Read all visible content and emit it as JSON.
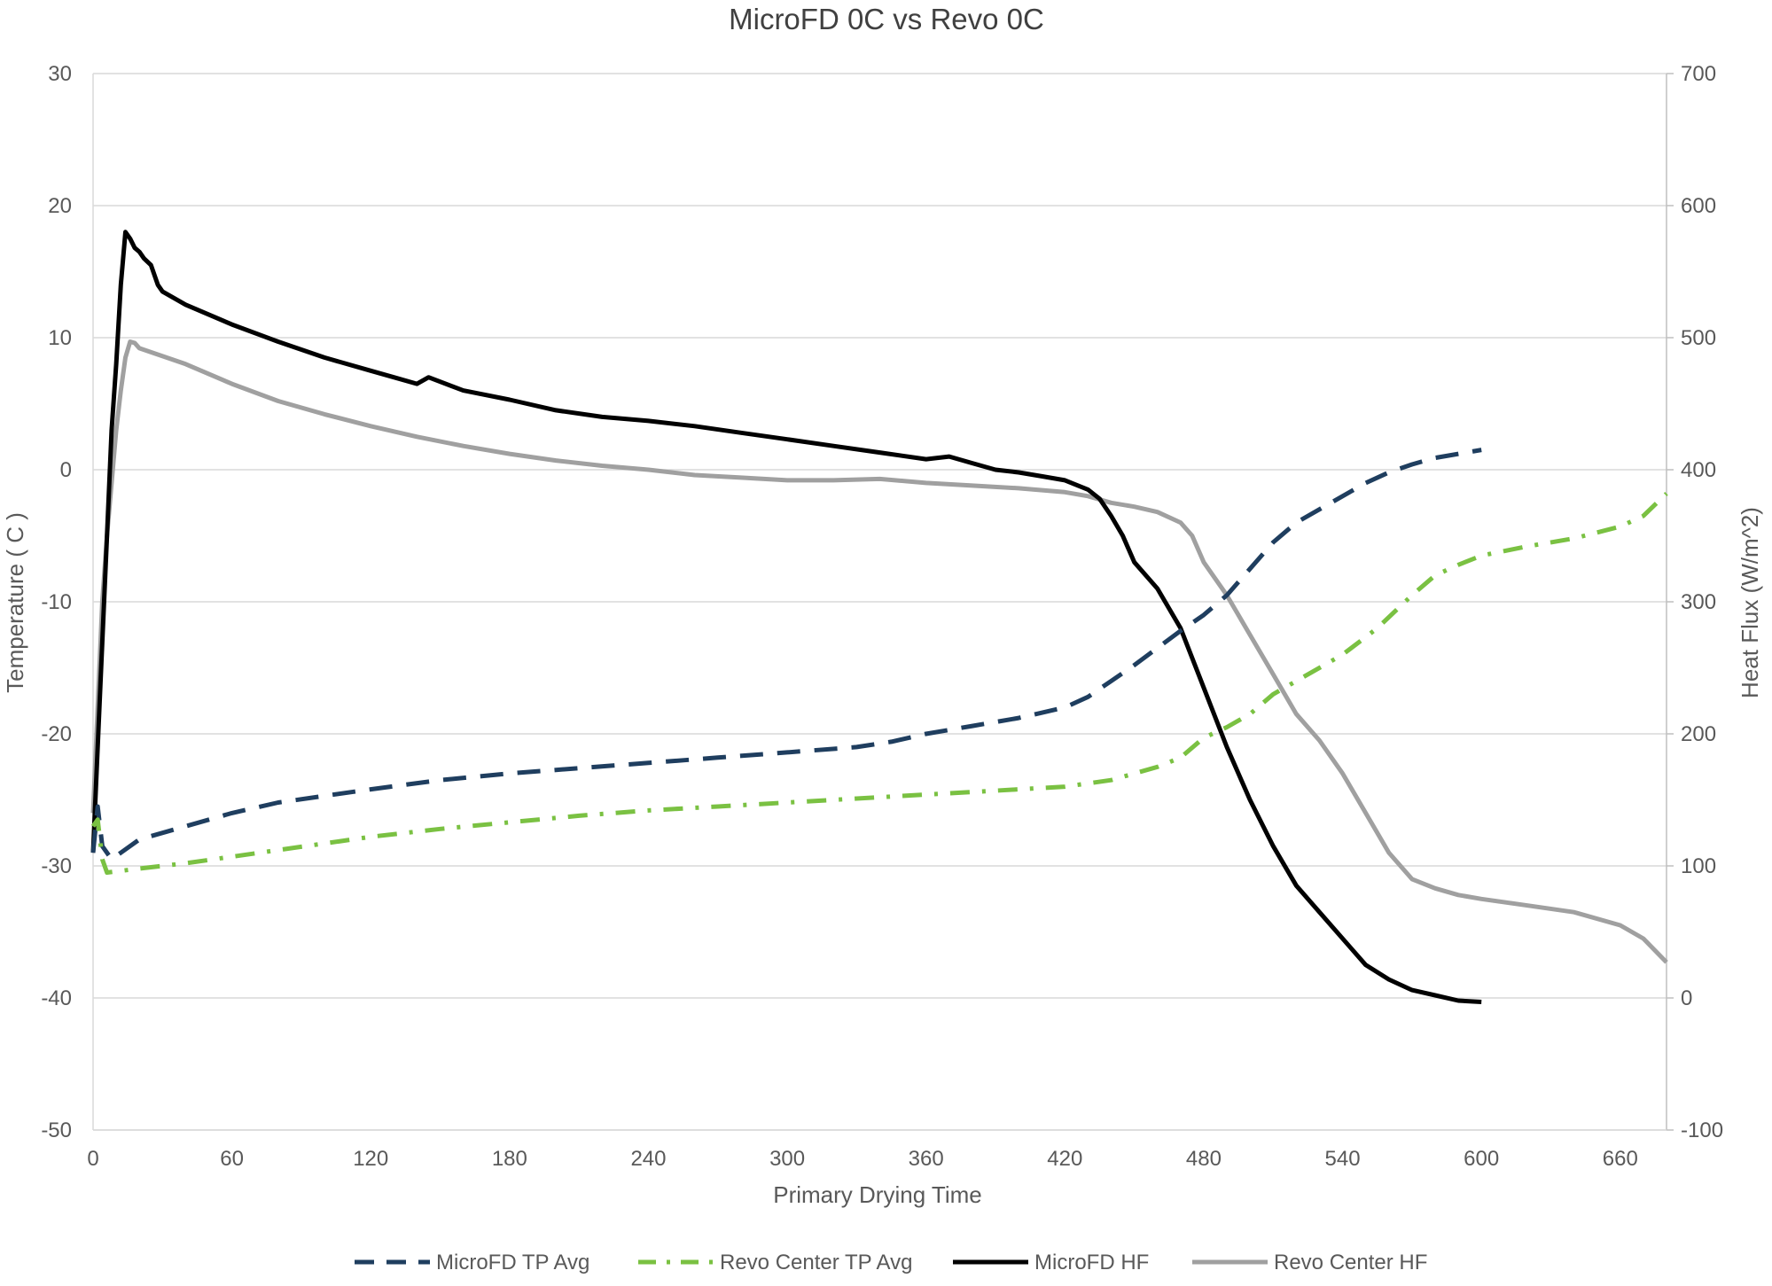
{
  "chart_data": {
    "type": "line",
    "title": "MicroFD 0C vs Revo 0C",
    "xlabel": "Primary Drying Time",
    "ylabel_left": "Temperature ( C )",
    "ylabel_right": "Heat Flux (W/m^2)",
    "xlim": [
      0,
      680
    ],
    "ylim_left": [
      -50,
      30
    ],
    "ylim_right": [
      -100,
      700
    ],
    "x_ticks": [
      "0",
      "60",
      "120",
      "180",
      "240",
      "300",
      "360",
      "420",
      "480",
      "540",
      "600",
      "660"
    ],
    "y_left_ticks": [
      "30",
      "20",
      "10",
      "0",
      "-10",
      "-20",
      "-30",
      "-40",
      "-50"
    ],
    "y_right_ticks": [
      "700",
      "600",
      "500",
      "400",
      "300",
      "200",
      "100",
      "0",
      "-100"
    ],
    "grid": "horizontal",
    "legend_position": "bottom",
    "series": [
      {
        "name": "MicroFD TP Avg",
        "axis": "left",
        "color": "#1f3e5f",
        "style": "dashed",
        "points": [
          [
            0,
            -29
          ],
          [
            2,
            -25.5
          ],
          [
            4,
            -28.5
          ],
          [
            8,
            -29.5
          ],
          [
            12,
            -29
          ],
          [
            20,
            -28
          ],
          [
            40,
            -27
          ],
          [
            60,
            -26
          ],
          [
            80,
            -25.2
          ],
          [
            100,
            -24.7
          ],
          [
            120,
            -24.2
          ],
          [
            150,
            -23.5
          ],
          [
            180,
            -23
          ],
          [
            210,
            -22.6
          ],
          [
            240,
            -22.2
          ],
          [
            270,
            -21.8
          ],
          [
            300,
            -21.4
          ],
          [
            330,
            -21
          ],
          [
            345,
            -20.6
          ],
          [
            360,
            -20
          ],
          [
            380,
            -19.4
          ],
          [
            400,
            -18.8
          ],
          [
            420,
            -18
          ],
          [
            430,
            -17.2
          ],
          [
            440,
            -16
          ],
          [
            450,
            -14.8
          ],
          [
            460,
            -13.5
          ],
          [
            470,
            -12.2
          ],
          [
            480,
            -11
          ],
          [
            490,
            -9.5
          ],
          [
            495,
            -8.5
          ],
          [
            500,
            -7.5
          ],
          [
            510,
            -5.5
          ],
          [
            520,
            -4
          ],
          [
            530,
            -3
          ],
          [
            540,
            -2
          ],
          [
            550,
            -1
          ],
          [
            560,
            -0.2
          ],
          [
            570,
            0.4
          ],
          [
            580,
            0.9
          ],
          [
            590,
            1.2
          ],
          [
            600,
            1.5
          ]
        ]
      },
      {
        "name": "Revo Center TP Avg",
        "axis": "left",
        "color": "#7ac142",
        "style": "dashdot",
        "points": [
          [
            0,
            -27
          ],
          [
            2,
            -26.5
          ],
          [
            4,
            -29.5
          ],
          [
            6,
            -30.5
          ],
          [
            20,
            -30.2
          ],
          [
            40,
            -29.8
          ],
          [
            60,
            -29.3
          ],
          [
            80,
            -28.8
          ],
          [
            100,
            -28.3
          ],
          [
            120,
            -27.8
          ],
          [
            150,
            -27.2
          ],
          [
            180,
            -26.7
          ],
          [
            210,
            -26.2
          ],
          [
            240,
            -25.8
          ],
          [
            270,
            -25.5
          ],
          [
            300,
            -25.2
          ],
          [
            330,
            -24.9
          ],
          [
            360,
            -24.6
          ],
          [
            390,
            -24.3
          ],
          [
            420,
            -24
          ],
          [
            440,
            -23.5
          ],
          [
            460,
            -22.5
          ],
          [
            470,
            -21.8
          ],
          [
            480,
            -20.3
          ],
          [
            490,
            -19.5
          ],
          [
            500,
            -18.5
          ],
          [
            510,
            -17
          ],
          [
            520,
            -16
          ],
          [
            540,
            -14
          ],
          [
            555,
            -12
          ],
          [
            570,
            -9.5
          ],
          [
            580,
            -8
          ],
          [
            590,
            -7.2
          ],
          [
            600,
            -6.5
          ],
          [
            620,
            -5.8
          ],
          [
            640,
            -5.2
          ],
          [
            660,
            -4.3
          ],
          [
            670,
            -3.5
          ],
          [
            680,
            -1.8
          ]
        ]
      },
      {
        "name": "MicroFD HF",
        "axis": "right",
        "color": "#000000",
        "style": "solid",
        "points": [
          [
            0,
            110
          ],
          [
            3,
            230
          ],
          [
            6,
            350
          ],
          [
            8,
            430
          ],
          [
            10,
            480
          ],
          [
            12,
            540
          ],
          [
            14,
            580
          ],
          [
            16,
            575
          ],
          [
            18,
            568
          ],
          [
            20,
            565
          ],
          [
            22,
            560
          ],
          [
            25,
            555
          ],
          [
            28,
            540
          ],
          [
            30,
            535
          ],
          [
            40,
            525
          ],
          [
            60,
            510
          ],
          [
            80,
            497
          ],
          [
            100,
            485
          ],
          [
            120,
            475
          ],
          [
            130,
            470
          ],
          [
            140,
            465
          ],
          [
            145,
            470
          ],
          [
            160,
            460
          ],
          [
            180,
            453
          ],
          [
            200,
            445
          ],
          [
            220,
            440
          ],
          [
            240,
            437
          ],
          [
            260,
            433
          ],
          [
            280,
            428
          ],
          [
            300,
            423
          ],
          [
            320,
            418
          ],
          [
            340,
            413
          ],
          [
            360,
            408
          ],
          [
            370,
            410
          ],
          [
            380,
            405
          ],
          [
            390,
            400
          ],
          [
            400,
            398
          ],
          [
            410,
            395
          ],
          [
            420,
            392
          ],
          [
            430,
            385
          ],
          [
            435,
            378
          ],
          [
            440,
            365
          ],
          [
            445,
            350
          ],
          [
            450,
            330
          ],
          [
            460,
            310
          ],
          [
            470,
            280
          ],
          [
            480,
            235
          ],
          [
            490,
            190
          ],
          [
            500,
            150
          ],
          [
            510,
            115
          ],
          [
            520,
            85
          ],
          [
            530,
            65
          ],
          [
            540,
            45
          ],
          [
            550,
            25
          ],
          [
            560,
            14
          ],
          [
            570,
            6
          ],
          [
            580,
            2
          ],
          [
            590,
            -2
          ],
          [
            600,
            -3
          ]
        ]
      },
      {
        "name": "Revo Center HF",
        "axis": "right",
        "color": "#a0a0a0",
        "style": "solid",
        "points": [
          [
            0,
            140
          ],
          [
            2,
            220
          ],
          [
            4,
            300
          ],
          [
            6,
            350
          ],
          [
            8,
            390
          ],
          [
            10,
            430
          ],
          [
            12,
            460
          ],
          [
            14,
            485
          ],
          [
            16,
            497
          ],
          [
            18,
            496
          ],
          [
            20,
            492
          ],
          [
            40,
            480
          ],
          [
            60,
            465
          ],
          [
            80,
            452
          ],
          [
            100,
            442
          ],
          [
            120,
            433
          ],
          [
            140,
            425
          ],
          [
            160,
            418
          ],
          [
            180,
            412
          ],
          [
            200,
            407
          ],
          [
            220,
            403
          ],
          [
            240,
            400
          ],
          [
            260,
            396
          ],
          [
            280,
            394
          ],
          [
            300,
            392
          ],
          [
            320,
            392
          ],
          [
            340,
            393
          ],
          [
            360,
            390
          ],
          [
            380,
            388
          ],
          [
            400,
            386
          ],
          [
            420,
            383
          ],
          [
            430,
            380
          ],
          [
            440,
            375
          ],
          [
            450,
            372
          ],
          [
            460,
            368
          ],
          [
            470,
            360
          ],
          [
            475,
            350
          ],
          [
            480,
            330
          ],
          [
            490,
            305
          ],
          [
            500,
            275
          ],
          [
            510,
            245
          ],
          [
            520,
            215
          ],
          [
            530,
            195
          ],
          [
            540,
            170
          ],
          [
            550,
            140
          ],
          [
            560,
            110
          ],
          [
            570,
            90
          ],
          [
            580,
            83
          ],
          [
            590,
            78
          ],
          [
            600,
            75
          ],
          [
            620,
            70
          ],
          [
            640,
            65
          ],
          [
            660,
            55
          ],
          [
            670,
            45
          ],
          [
            680,
            27
          ]
        ]
      }
    ]
  }
}
